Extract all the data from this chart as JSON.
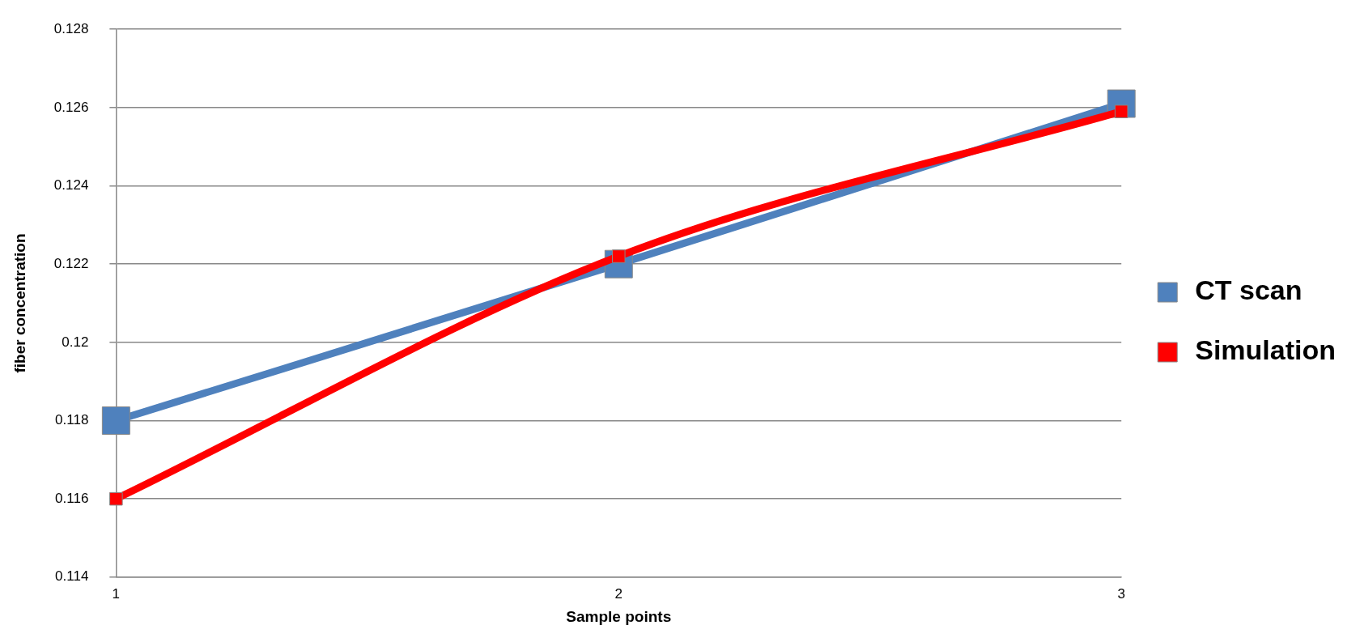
{
  "chart_data": {
    "type": "line",
    "xlabel": "Sample points",
    "ylabel": "fiber concentration",
    "categories": [
      "1",
      "2",
      "3"
    ],
    "series": [
      {
        "name": "CT scan",
        "color": "#4f81bd",
        "values": [
          0.118,
          0.122,
          0.1261
        ]
      },
      {
        "name": "Simulation",
        "color": "#ff0000",
        "values": [
          0.116,
          0.1222,
          0.1259
        ]
      }
    ],
    "ylim": [
      0.114,
      0.128
    ],
    "yticks": [
      0.114,
      0.116,
      0.118,
      0.12,
      0.122,
      0.124,
      0.126,
      0.128
    ],
    "grid": "y",
    "legend": "right",
    "marker": "square",
    "line_style": "solid"
  }
}
